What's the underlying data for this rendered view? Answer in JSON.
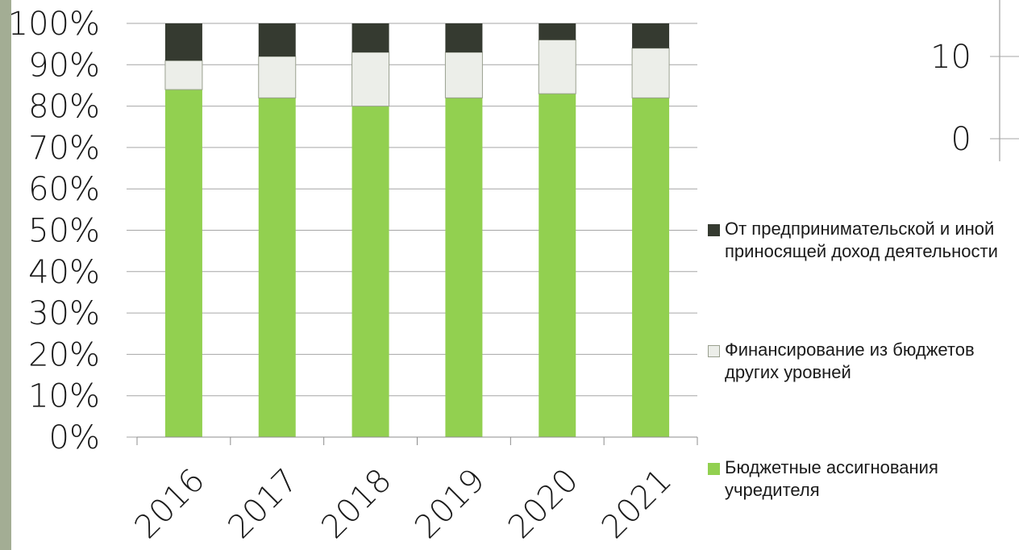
{
  "colors": {
    "strip": "#a3ad94",
    "entrepreneurial": "#353a30",
    "other_budgets": "#eceee9",
    "other_budgets_border": "#9aa08f",
    "founder": "#92d050",
    "gridline": "#a6a6a6",
    "axis": "#8c8c8c"
  },
  "chart_data": [
    {
      "type": "bar",
      "stacked": true,
      "percent": true,
      "categories": [
        "2016",
        "2017",
        "2018",
        "2019",
        "2020",
        "2021"
      ],
      "series": [
        {
          "name": "Бюджетные ассигнования учредителя",
          "values": [
            84,
            82,
            80,
            82,
            83,
            82
          ]
        },
        {
          "name": "Финансирование из бюджетов других уровней",
          "values": [
            7,
            10,
            13,
            11,
            13,
            12
          ]
        },
        {
          "name": "От предпринимательской и иной приносящей доход деятельности",
          "values": [
            9,
            8,
            7,
            7,
            4,
            6
          ]
        }
      ],
      "ylim": [
        0,
        100
      ],
      "yticks": [
        "0%",
        "10%",
        "20%",
        "30%",
        "40%",
        "50%",
        "60%",
        "70%",
        "80%",
        "90%",
        "100%"
      ],
      "grid": true,
      "legend": {
        "position": "right",
        "order": [
          "От предпринимательской и иной приносящей доход деятельности",
          "Финансирование из бюджетов других уровней",
          "Бюджетные ассигнования учредителя"
        ]
      }
    },
    {
      "type": "bar",
      "partial": true,
      "yticks": [
        "0",
        "10"
      ],
      "ylim": [
        0,
        10
      ]
    }
  ]
}
